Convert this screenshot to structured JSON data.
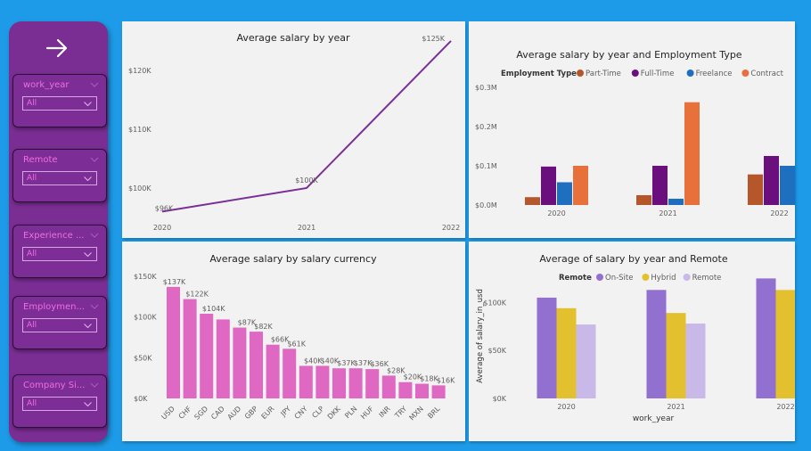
{
  "sidebar": {
    "slicers": [
      {
        "title": "work_year",
        "value": "All"
      },
      {
        "title": "Remote",
        "value": "All"
      },
      {
        "title": "Experience ...",
        "value": "All"
      },
      {
        "title": "Employmen...",
        "value": "All"
      },
      {
        "title": "Company Si...",
        "value": "All"
      }
    ]
  },
  "chart_data": [
    {
      "type": "line",
      "title": "Average salary by year",
      "x": [
        "2020",
        "2021",
        "2022"
      ],
      "values": [
        96,
        100,
        125
      ],
      "data_labels": [
        "$96K",
        "$100K",
        "$125K"
      ],
      "y_ticks": [
        "$100K",
        "$110K",
        "$120K"
      ],
      "y_tick_values": [
        100,
        110,
        120
      ],
      "ylim": [
        95.3,
        126.5
      ],
      "series_color": "#7b2f96",
      "grid": false
    },
    {
      "type": "bar",
      "title": "Average salary by year and Employment Type",
      "legend_title": "Employment Type",
      "legend_position": "top-left",
      "categories": [
        "2020",
        "2021",
        "2022"
      ],
      "series": [
        {
          "name": "Part-Time",
          "color": "#b5572b",
          "values": [
            0.02,
            0.025,
            0.078
          ]
        },
        {
          "name": "Full-Time",
          "color": "#6b0f7e",
          "values": [
            0.098,
            0.1,
            0.125
          ]
        },
        {
          "name": "Freelance",
          "color": "#1f6fc0",
          "values": [
            0.058,
            0.016,
            0.1
          ]
        },
        {
          "name": "Contract",
          "color": "#e8703a",
          "values": [
            0.1,
            0.262,
            0.032
          ]
        }
      ],
      "y_ticks": [
        "$0.0M",
        "$0.1M",
        "$0.2M",
        "$0.3M"
      ],
      "y_tick_values": [
        0,
        0.1,
        0.2,
        0.3
      ],
      "ylim": [
        0,
        0.3
      ],
      "grid": false
    },
    {
      "type": "bar",
      "title": "Average salary by salary currency",
      "categories": [
        "USD",
        "CHF",
        "SGD",
        "CAD",
        "AUD",
        "GBP",
        "EUR",
        "JPY",
        "CNY",
        "CLP",
        "DKK",
        "PLN",
        "HUF",
        "INR",
        "TRY",
        "MXN",
        "BRL"
      ],
      "values": [
        137,
        122,
        104,
        97,
        87,
        82,
        66,
        61,
        40,
        40,
        37,
        37,
        36,
        28,
        20,
        18,
        16
      ],
      "data_labels": [
        "$137K",
        "$122K",
        "$104K",
        "",
        "$87K",
        "$82K",
        "$66K",
        "$61K",
        "$40K",
        "$40K",
        "$37K",
        "$37K",
        "$36K",
        "$28K",
        "$20K",
        "$18K",
        "$16K"
      ],
      "y_ticks": [
        "$0K",
        "$50K",
        "$100K",
        "$150K"
      ],
      "y_tick_values": [
        0,
        50,
        100,
        150
      ],
      "ylim": [
        0,
        150
      ],
      "bar_color": "#df68c2",
      "grid": false
    },
    {
      "type": "bar",
      "title": "Average of salary by year and Remote",
      "legend_title": "Remote",
      "legend_position": "top-center",
      "xlabel": "work_year",
      "ylabel": "Average of salary_in_usd",
      "categories": [
        "2020",
        "2021",
        "2022"
      ],
      "series": [
        {
          "name": "On-Site",
          "color": "#9170cf",
          "values": [
            105,
            113,
            125
          ]
        },
        {
          "name": "Hybrid",
          "color": "#e3c12e",
          "values": [
            94,
            89,
            113
          ]
        },
        {
          "name": "Remote",
          "color": "#c8b9e8",
          "values": [
            77,
            78,
            96
          ]
        }
      ],
      "y_ticks": [
        "$0K",
        "$50K",
        "$100K"
      ],
      "y_tick_values": [
        0,
        50,
        100
      ],
      "ylim": [
        0,
        130
      ],
      "grid": false
    }
  ]
}
